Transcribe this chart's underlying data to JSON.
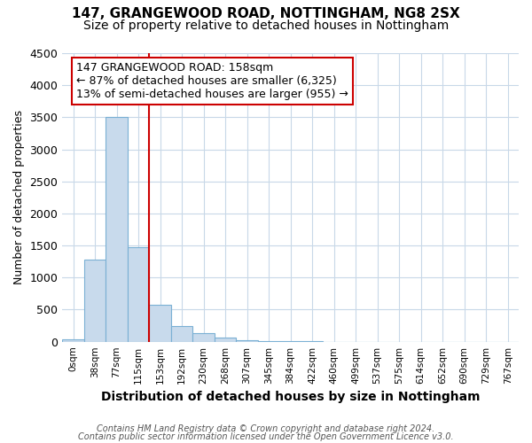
{
  "title1": "147, GRANGEWOOD ROAD, NOTTINGHAM, NG8 2SX",
  "title2": "Size of property relative to detached houses in Nottingham",
  "xlabel": "Distribution of detached houses by size in Nottingham",
  "ylabel": "Number of detached properties",
  "footnote1": "Contains HM Land Registry data © Crown copyright and database right 2024.",
  "footnote2": "Contains public sector information licensed under the Open Government Licence v3.0.",
  "annotation_line1": "147 GRANGEWOOD ROAD: 158sqm",
  "annotation_line2": "← 87% of detached houses are smaller (6,325)",
  "annotation_line3": "13% of semi-detached houses are larger (955) →",
  "categories": [
    "0sqm",
    "38sqm",
    "77sqm",
    "115sqm",
    "153sqm",
    "192sqm",
    "230sqm",
    "268sqm",
    "307sqm",
    "345sqm",
    "384sqm",
    "422sqm",
    "460sqm",
    "499sqm",
    "537sqm",
    "575sqm",
    "614sqm",
    "652sqm",
    "690sqm",
    "729sqm",
    "767sqm"
  ],
  "values": [
    40,
    1280,
    3500,
    1480,
    570,
    240,
    130,
    70,
    30,
    10,
    5,
    3,
    0,
    0,
    0,
    0,
    0,
    0,
    0,
    0,
    0
  ],
  "bar_color": "#c8daec",
  "bar_edge_color": "#7ab0d4",
  "vline_index": 4,
  "vline_color": "#cc0000",
  "ylim": [
    0,
    4500
  ],
  "yticks": [
    0,
    500,
    1000,
    1500,
    2000,
    2500,
    3000,
    3500,
    4000,
    4500
  ],
  "bg_color": "#ffffff",
  "grid_color": "#c8d8e8",
  "annotation_box_edge_color": "#cc0000",
  "title1_fontsize": 11,
  "title2_fontsize": 10,
  "xlabel_fontsize": 10,
  "ylabel_fontsize": 9,
  "annot_fontsize": 9,
  "footnote_fontsize": 7
}
